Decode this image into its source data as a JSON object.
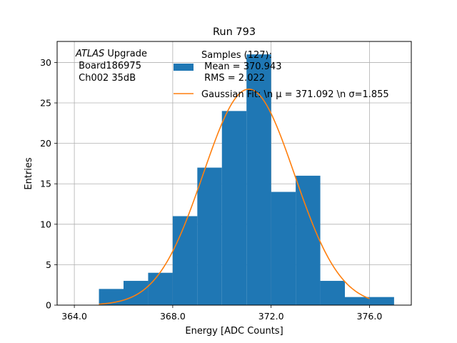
{
  "chart_data": {
    "type": "bar",
    "title": "Run 793",
    "xlabel": "Energy [ADC Counts]",
    "ylabel": "Entries",
    "xlim": [
      363.3,
      377.7
    ],
    "ylim": [
      0,
      32.6
    ],
    "grid": true,
    "x_ticks": [
      364,
      368,
      372,
      376
    ],
    "x_tick_labels": [
      "364.0",
      "368.0",
      "372.0",
      "376.0"
    ],
    "y_ticks": [
      0,
      5,
      10,
      15,
      20,
      25,
      30
    ],
    "y_tick_labels": [
      "0",
      "5",
      "10",
      "15",
      "20",
      "25",
      "30"
    ],
    "histogram": {
      "bin_edges": [
        365,
        366,
        367,
        368,
        369,
        370,
        371,
        372,
        373,
        374,
        375,
        376,
        377
      ],
      "counts": [
        2,
        3,
        4,
        11,
        17,
        24,
        31,
        14,
        16,
        3,
        1,
        1
      ],
      "color": "#1f77b4"
    },
    "fit": {
      "mu": 371.092,
      "sigma": 1.855,
      "amplitude": 26.7,
      "x_range": [
        365,
        376
      ],
      "color": "#ff7f0e"
    },
    "legend": {
      "placement": "top-right",
      "entries": [
        {
          "lines": [
            "Samples (127):",
            " Mean = 370.943",
            " RMS = 2.022"
          ],
          "color": "#1f77b4",
          "kind": "patch"
        },
        {
          "lines": [
            "Gaussian Fit: \\n μ = 371.092 \\n σ=1.855"
          ],
          "color": "#ff7f0e",
          "kind": "line"
        }
      ]
    },
    "annotation": {
      "italic": "ATLAS",
      "rest": " Upgrade",
      "lines": [
        " Board186975",
        " Ch002 35dB"
      ]
    }
  }
}
